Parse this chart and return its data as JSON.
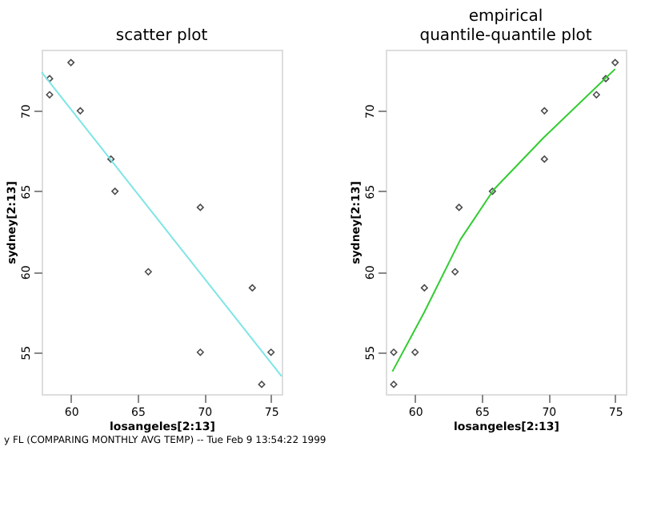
{
  "chart_data": [
    {
      "type": "scatter",
      "title": "scatter plot",
      "xlabel": "losangeles[2:13]",
      "ylabel": "sydney[2:13]",
      "xlim": [
        57.8,
        75.8
      ],
      "ylim": [
        52.4,
        73.8
      ],
      "xticks": [
        60,
        65,
        70,
        75
      ],
      "yticks": [
        55,
        60,
        65,
        70
      ],
      "grid": false,
      "annotations": [
        "y FL (COMPARING MONTHLY AVG TEMP) -- Tue Feb 9 13:54:22 1999"
      ],
      "series": [
        {
          "marker": "diamond",
          "color": "#000000",
          "x": [
            58.4,
            58.4,
            60,
            60.7,
            63,
            63.3,
            69.7,
            65.8,
            73.6,
            69.7,
            75,
            74.3
          ],
          "values": [
            72,
            71,
            73,
            70,
            67,
            65,
            64,
            60,
            59,
            55,
            55,
            53
          ]
        },
        {
          "type": "line",
          "line_style": "solid",
          "color": "#7fe5e5",
          "x": [
            57.8,
            75.8
          ],
          "values": [
            72.4,
            53.5
          ]
        }
      ]
    },
    {
      "type": "scatter",
      "title": "empirical\nquantile-quantile plot",
      "xlabel": "losangeles[2:13]",
      "ylabel": "sydney[2:13]",
      "xlim": [
        57.8,
        75.8
      ],
      "ylim": [
        52.4,
        73.8
      ],
      "xticks": [
        60,
        65,
        70,
        75
      ],
      "yticks": [
        55,
        60,
        65,
        70
      ],
      "grid": false,
      "series": [
        {
          "marker": "diamond",
          "color": "#000000",
          "x": [
            58.4,
            58.4,
            60,
            60.7,
            63,
            63.3,
            65.8,
            69.7,
            69.7,
            73.6,
            74.3,
            75
          ],
          "values": [
            53,
            55,
            55,
            59,
            60,
            64,
            65,
            67,
            70,
            71,
            72,
            73
          ]
        },
        {
          "type": "line",
          "line_style": "solid",
          "color": "#33cc33",
          "x": [
            58.3,
            60.7,
            63.4,
            65.9,
            69.6,
            75
          ],
          "values": [
            53.8,
            57.5,
            62.0,
            65.1,
            68.3,
            72.6
          ]
        }
      ]
    }
  ]
}
